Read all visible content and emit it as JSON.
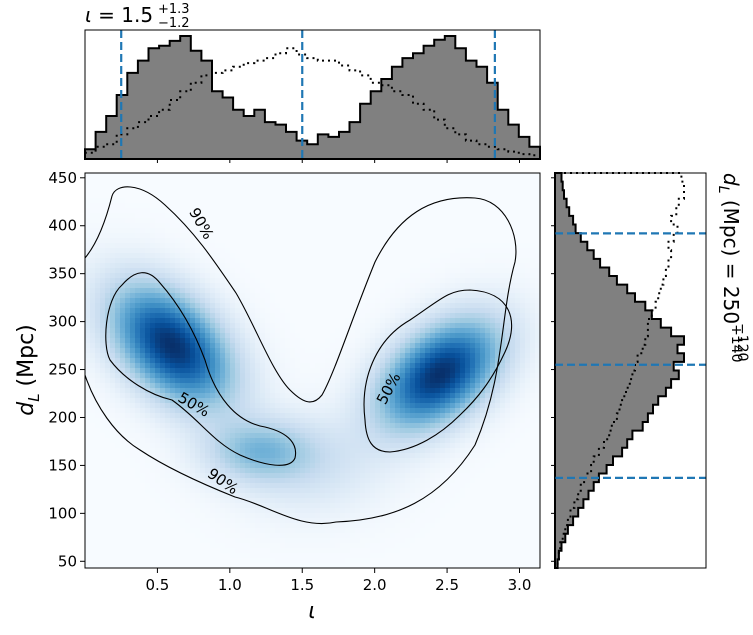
{
  "chart_data": [
    {
      "id": "top-marginal",
      "type": "histogram",
      "title_param": "ι",
      "title_eq": " = 1.5",
      "title_sup": "+1.3",
      "title_sub": "−1.2",
      "xlim": [
        0.0,
        3.14159
      ],
      "median": 1.5,
      "ci_low": 0.25,
      "ci_high": 2.83,
      "dashed_color": "#1f77b4",
      "fill_color": "#808080"
    },
    {
      "id": "joint-density",
      "type": "heatmap",
      "xlabel": "ι",
      "ylabel_main": "d",
      "ylabel_sub": "L",
      "ylabel_tail": " (Mpc)",
      "xlim": [
        0.0,
        3.14159
      ],
      "ylim": [
        43,
        455
      ],
      "xticks": [
        0.5,
        1.0,
        1.5,
        2.0,
        2.5,
        3.0
      ],
      "xtick_labels": [
        "0.5",
        "1.0",
        "1.5",
        "2.0",
        "2.5",
        "3.0"
      ],
      "yticks": [
        50,
        100,
        150,
        200,
        250,
        300,
        350,
        400,
        450
      ],
      "ytick_labels": [
        "50",
        "100",
        "150",
        "200",
        "250",
        "300",
        "350",
        "400",
        "450"
      ],
      "colormap": "Blues",
      "modes": [
        {
          "x": 0.6,
          "y": 275,
          "sx": 0.28,
          "sy": 42,
          "rho": -0.45,
          "w": 1.0
        },
        {
          "x": 2.45,
          "y": 245,
          "sx": 0.28,
          "sy": 38,
          "rho": 0.45,
          "w": 1.0
        },
        {
          "x": 1.2,
          "y": 165,
          "sx": 0.25,
          "sy": 22,
          "rho": 0.0,
          "w": 0.35
        },
        {
          "x": 1.55,
          "y": 150,
          "sx": 0.35,
          "sy": 35,
          "rho": 0.0,
          "w": 0.15
        }
      ],
      "contour_labels": [
        {
          "text": "90%",
          "x": 0.8,
          "y": 402,
          "angle": 60
        },
        {
          "text": "50%",
          "x": 0.75,
          "y": 213,
          "angle": 30
        },
        {
          "text": "90%",
          "x": 0.95,
          "y": 133,
          "angle": 35
        },
        {
          "text": "50%",
          "x": 2.1,
          "y": 230,
          "angle": -62
        }
      ]
    },
    {
      "id": "right-marginal",
      "type": "histogram",
      "orientation": "horizontal",
      "label_param": "d",
      "label_sub": "L",
      "label_eq": " (Mpc) = 250",
      "label_sup": "+140",
      "label_sub2": "−120",
      "ylim": [
        43,
        455
      ],
      "median": 255,
      "ci_low": 137,
      "ci_high": 392,
      "dashed_color": "#1f77b4",
      "fill_color": "#808080"
    }
  ]
}
